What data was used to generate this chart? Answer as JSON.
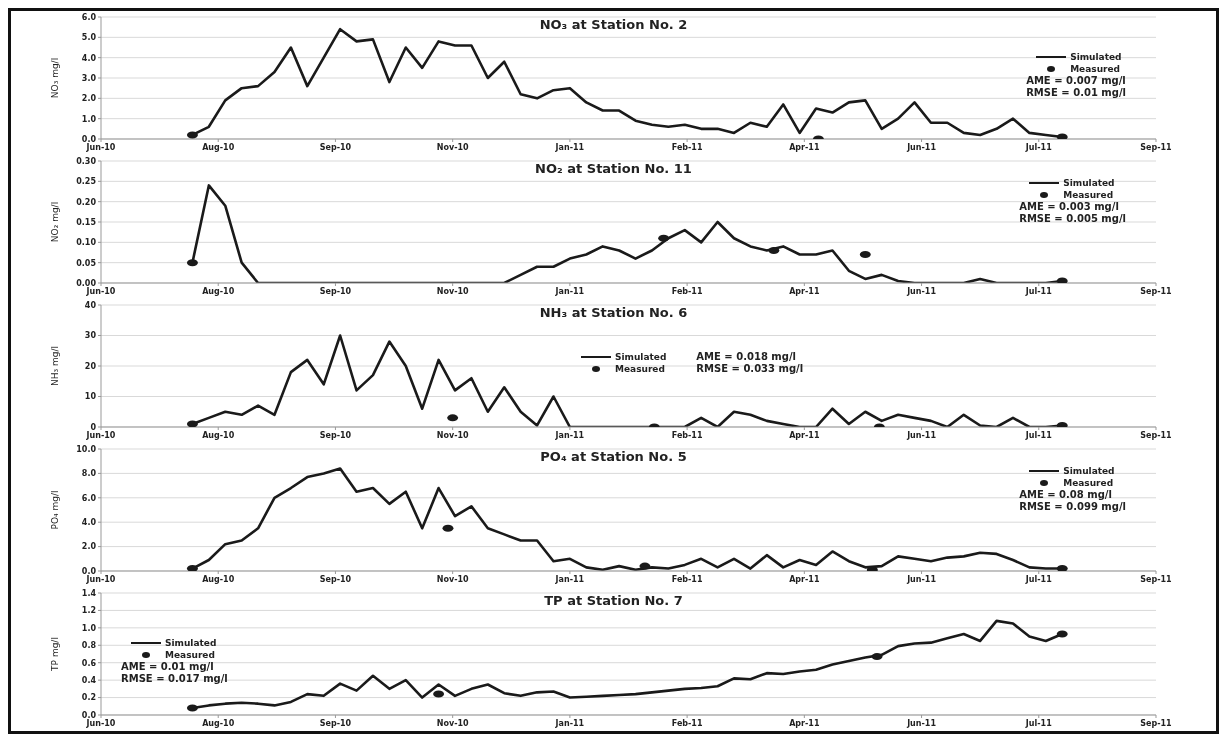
{
  "chart_data": [
    {
      "type": "line",
      "title": "NO₃ at Station No. 2",
      "ylabel": "NO₃ mg/l",
      "annotations": [
        "AME = 0.007 mg/l",
        "RMSE = 0.01 mg/l"
      ],
      "legend": "right",
      "grid": "y",
      "xlim": [
        "2010-06-20",
        "2011-09-13"
      ],
      "xticks": [
        {
          "value": "2010-06-20",
          "label": "Jun-10"
        },
        {
          "value": "2010-08-09",
          "label": "Aug-10"
        },
        {
          "value": "2010-09-28",
          "label": "Sep-10"
        },
        {
          "value": "2010-11-17",
          "label": "Nov-10"
        },
        {
          "value": "2011-01-06",
          "label": "Jan-11"
        },
        {
          "value": "2011-02-25",
          "label": "Feb-11"
        },
        {
          "value": "2011-04-16",
          "label": "Apr-11"
        },
        {
          "value": "2011-06-05",
          "label": "Jun-11"
        },
        {
          "value": "2011-07-25",
          "label": "Jul-11"
        },
        {
          "value": "2011-09-13",
          "label": "Sep-11"
        }
      ],
      "ylim": [
        0,
        6
      ],
      "yticks": [
        {
          "value": 0,
          "label": "0.0"
        },
        {
          "value": 1,
          "label": "1.0"
        },
        {
          "value": 2,
          "label": "2.0"
        },
        {
          "value": 3,
          "label": "3.0"
        },
        {
          "value": 4,
          "label": "4.0"
        },
        {
          "value": 5,
          "label": "5.0"
        },
        {
          "value": 6,
          "label": "6.0"
        }
      ],
      "x": [
        "2010-07-29",
        "2010-08-05",
        "2010-08-12",
        "2010-08-19",
        "2010-08-26",
        "2010-09-02",
        "2010-09-09",
        "2010-09-16",
        "2010-09-23",
        "2010-09-30",
        "2010-10-07",
        "2010-10-14",
        "2010-10-21",
        "2010-10-28",
        "2010-11-04",
        "2010-11-11",
        "2010-11-18",
        "2010-11-25",
        "2010-12-02",
        "2010-12-09",
        "2010-12-16",
        "2010-12-23",
        "2010-12-30",
        "2011-01-06",
        "2011-01-13",
        "2011-01-20",
        "2011-01-27",
        "2011-02-03",
        "2011-02-10",
        "2011-02-17",
        "2011-02-24",
        "2011-03-03",
        "2011-03-10",
        "2011-03-17",
        "2011-03-24",
        "2011-03-31",
        "2011-04-07",
        "2011-04-14",
        "2011-04-21",
        "2011-04-28",
        "2011-05-05",
        "2011-05-12",
        "2011-05-19",
        "2011-05-26",
        "2011-06-02",
        "2011-06-09",
        "2011-06-16",
        "2011-06-23",
        "2011-06-30",
        "2011-07-07",
        "2011-07-14",
        "2011-07-21",
        "2011-07-28",
        "2011-08-04"
      ],
      "series": [
        {
          "name": "Simulated",
          "type": "line",
          "color": "#1a1a1a",
          "marker": "none",
          "line_style": "solid",
          "values": [
            0.2,
            0.6,
            1.9,
            2.5,
            2.6,
            3.3,
            4.5,
            2.6,
            4.0,
            5.4,
            4.8,
            4.9,
            2.8,
            4.5,
            3.5,
            4.8,
            4.6,
            4.6,
            3.0,
            3.8,
            2.2,
            2.0,
            2.4,
            2.5,
            1.8,
            1.4,
            1.4,
            0.9,
            0.7,
            0.6,
            0.7,
            0.5,
            0.5,
            0.3,
            0.8,
            0.6,
            1.7,
            0.3,
            1.5,
            1.3,
            1.8,
            1.9,
            0.5,
            1.0,
            1.8,
            0.8,
            0.8,
            0.3,
            0.2,
            0.5,
            1.0,
            0.3,
            0.2,
            0.1
          ]
        },
        {
          "name": "Measured",
          "type": "scatter",
          "color": "#1a1a1a",
          "marker": "circle",
          "x": [
            "2010-07-29",
            "2011-04-22",
            "2011-08-04"
          ],
          "values": [
            0.2,
            0.0,
            0.1
          ]
        }
      ]
    },
    {
      "type": "line",
      "title": "NO₂ at Station No. 11",
      "ylabel": "NO₂ mg/l",
      "annotations": [
        "AME = 0.003 mg/l",
        "RMSE = 0.005 mg/l"
      ],
      "legend": "top right",
      "grid": "y",
      "xlim": [
        "2010-06-20",
        "2011-09-13"
      ],
      "xticks": [
        {
          "value": "2010-06-20",
          "label": "Jun-10"
        },
        {
          "value": "2010-08-09",
          "label": "Aug-10"
        },
        {
          "value": "2010-09-28",
          "label": "Sep-10"
        },
        {
          "value": "2010-11-17",
          "label": "Nov-10"
        },
        {
          "value": "2011-01-06",
          "label": "Jan-11"
        },
        {
          "value": "2011-02-25",
          "label": "Feb-11"
        },
        {
          "value": "2011-04-16",
          "label": "Apr-11"
        },
        {
          "value": "2011-06-05",
          "label": "Jun-11"
        },
        {
          "value": "2011-07-25",
          "label": "Jul-11"
        },
        {
          "value": "2011-09-13",
          "label": "Sep-11"
        }
      ],
      "ylim": [
        0,
        0.3
      ],
      "yticks": [
        {
          "value": 0,
          "label": "0.00"
        },
        {
          "value": 0.05,
          "label": "0.05"
        },
        {
          "value": 0.1,
          "label": "0.10"
        },
        {
          "value": 0.15,
          "label": "0.15"
        },
        {
          "value": 0.2,
          "label": "0.20"
        },
        {
          "value": 0.25,
          "label": "0.25"
        },
        {
          "value": 0.3,
          "label": "0.30"
        }
      ],
      "x": [
        "2010-07-29",
        "2010-08-05",
        "2010-08-12",
        "2010-08-19",
        "2010-08-26",
        "2010-09-02",
        "2010-09-09",
        "2010-09-16",
        "2010-09-23",
        "2010-09-30",
        "2010-10-07",
        "2010-10-14",
        "2010-10-21",
        "2010-10-28",
        "2010-11-04",
        "2010-11-11",
        "2010-11-18",
        "2010-11-25",
        "2010-12-02",
        "2010-12-09",
        "2010-12-16",
        "2010-12-23",
        "2010-12-30",
        "2011-01-06",
        "2011-01-13",
        "2011-01-20",
        "2011-01-27",
        "2011-02-03",
        "2011-02-10",
        "2011-02-17",
        "2011-02-24",
        "2011-03-03",
        "2011-03-10",
        "2011-03-17",
        "2011-03-24",
        "2011-03-31",
        "2011-04-07",
        "2011-04-14",
        "2011-04-21",
        "2011-04-28",
        "2011-05-05",
        "2011-05-12",
        "2011-05-19",
        "2011-05-26",
        "2011-06-02",
        "2011-06-09",
        "2011-06-16",
        "2011-06-23",
        "2011-06-30",
        "2011-07-07",
        "2011-07-14",
        "2011-07-21",
        "2011-07-28",
        "2011-08-04"
      ],
      "series": [
        {
          "name": "Simulated",
          "type": "line",
          "color": "#1a1a1a",
          "marker": "none",
          "line_style": "solid",
          "values": [
            0.05,
            0.24,
            0.19,
            0.05,
            0,
            0,
            0,
            0,
            0,
            0,
            0,
            0,
            0,
            0,
            0,
            0,
            0,
            0,
            0,
            0,
            0.02,
            0.04,
            0.04,
            0.06,
            0.07,
            0.09,
            0.08,
            0.06,
            0.08,
            0.11,
            0.13,
            0.1,
            0.15,
            0.11,
            0.09,
            0.08,
            0.09,
            0.07,
            0.07,
            0.08,
            0.03,
            0.01,
            0.02,
            0.005,
            0,
            0,
            0,
            0,
            0.01,
            0,
            0,
            0,
            0,
            0.005
          ]
        },
        {
          "name": "Measured",
          "type": "scatter",
          "color": "#1a1a1a",
          "marker": "circle",
          "x": [
            "2010-07-29",
            "2011-02-15",
            "2011-04-03",
            "2011-05-12",
            "2011-08-04"
          ],
          "values": [
            0.05,
            0.11,
            0.08,
            0.07,
            0.005
          ]
        }
      ]
    },
    {
      "type": "line",
      "title": "NH₃ at Station No. 6",
      "ylabel": "NH₃ mg/l",
      "annotations": [
        "AME = 0.018 mg/l",
        "RMSE = 0.033 mg/l"
      ],
      "legend": "center",
      "grid": "y",
      "xlim": [
        "2010-06-20",
        "2011-09-13"
      ],
      "xticks": [
        {
          "value": "2010-06-20",
          "label": "Jun-10"
        },
        {
          "value": "2010-08-09",
          "label": "Aug-10"
        },
        {
          "value": "2010-09-28",
          "label": "Sep-10"
        },
        {
          "value": "2010-11-17",
          "label": "Nov-10"
        },
        {
          "value": "2011-01-06",
          "label": "Jan-11"
        },
        {
          "value": "2011-02-25",
          "label": "Feb-11"
        },
        {
          "value": "2011-04-16",
          "label": "Apr-11"
        },
        {
          "value": "2011-06-05",
          "label": "Jun-11"
        },
        {
          "value": "2011-07-25",
          "label": "Jul-11"
        },
        {
          "value": "2011-09-13",
          "label": "Sep-11"
        }
      ],
      "ylim": [
        0,
        40
      ],
      "yticks": [
        0,
        10,
        20,
        30,
        40
      ],
      "x": [
        "2010-07-29",
        "2010-08-05",
        "2010-08-12",
        "2010-08-19",
        "2010-08-26",
        "2010-09-02",
        "2010-09-09",
        "2010-09-16",
        "2010-09-23",
        "2010-09-30",
        "2010-10-07",
        "2010-10-14",
        "2010-10-21",
        "2010-10-28",
        "2010-11-04",
        "2010-11-11",
        "2010-11-18",
        "2010-11-25",
        "2010-12-02",
        "2010-12-09",
        "2010-12-16",
        "2010-12-23",
        "2010-12-30",
        "2011-01-06",
        "2011-01-13",
        "2011-01-20",
        "2011-01-27",
        "2011-02-03",
        "2011-02-10",
        "2011-02-17",
        "2011-02-24",
        "2011-03-03",
        "2011-03-10",
        "2011-03-17",
        "2011-03-24",
        "2011-03-31",
        "2011-04-07",
        "2011-04-14",
        "2011-04-21",
        "2011-04-28",
        "2011-05-05",
        "2011-05-12",
        "2011-05-19",
        "2011-05-26",
        "2011-06-02",
        "2011-06-09",
        "2011-06-16",
        "2011-06-23",
        "2011-06-30",
        "2011-07-07",
        "2011-07-14",
        "2011-07-21",
        "2011-07-28",
        "2011-08-04"
      ],
      "series": [
        {
          "name": "Simulated",
          "type": "line",
          "color": "#1a1a1a",
          "marker": "none",
          "line_style": "solid",
          "values": [
            1,
            3,
            5,
            4,
            7,
            4,
            18,
            22,
            14,
            30,
            12,
            17,
            28,
            20,
            6,
            22,
            12,
            16,
            5,
            13,
            5,
            0.5,
            10,
            0,
            0,
            0,
            0,
            0,
            0,
            0,
            0,
            3,
            0,
            5,
            4,
            2,
            1,
            0,
            0,
            6,
            1,
            5,
            2,
            4,
            3,
            2,
            0,
            4,
            0.5,
            0,
            3,
            0,
            0,
            0.5
          ]
        },
        {
          "name": "Measured",
          "type": "scatter",
          "color": "#1a1a1a",
          "marker": "circle",
          "x": [
            "2010-07-29",
            "2010-11-17",
            "2011-02-11",
            "2011-05-18",
            "2011-08-04"
          ],
          "values": [
            1,
            3,
            0,
            0,
            0.5
          ]
        }
      ]
    },
    {
      "type": "line",
      "title": "PO₄ at Station No. 5",
      "ylabel": "PO₄ mg/l",
      "annotations": [
        "AME = 0.08 mg/l",
        "RMSE = 0.099 mg/l"
      ],
      "legend": "top right",
      "grid": "y",
      "xlim": [
        "2010-06-20",
        "2011-09-13"
      ],
      "xticks": [
        {
          "value": "2010-06-20",
          "label": "Jun-10"
        },
        {
          "value": "2010-08-09",
          "label": "Aug-10"
        },
        {
          "value": "2010-09-28",
          "label": "Sep-10"
        },
        {
          "value": "2010-11-17",
          "label": "Nov-10"
        },
        {
          "value": "2011-01-06",
          "label": "Jan-11"
        },
        {
          "value": "2011-02-25",
          "label": "Feb-11"
        },
        {
          "value": "2011-04-16",
          "label": "Apr-11"
        },
        {
          "value": "2011-06-05",
          "label": "Jun-11"
        },
        {
          "value": "2011-07-25",
          "label": "Jul-11"
        },
        {
          "value": "2011-09-13",
          "label": "Sep-11"
        }
      ],
      "ylim": [
        0,
        10
      ],
      "yticks": [
        {
          "value": 0,
          "label": "0.0"
        },
        {
          "value": 2,
          "label": "2.0"
        },
        {
          "value": 4,
          "label": "4.0"
        },
        {
          "value": 6,
          "label": "6.0"
        },
        {
          "value": 8,
          "label": "8.0"
        },
        {
          "value": 10,
          "label": "10.0"
        }
      ],
      "x": [
        "2010-07-29",
        "2010-08-05",
        "2010-08-12",
        "2010-08-19",
        "2010-08-26",
        "2010-09-02",
        "2010-09-09",
        "2010-09-16",
        "2010-09-23",
        "2010-09-30",
        "2010-10-07",
        "2010-10-14",
        "2010-10-21",
        "2010-10-28",
        "2010-11-04",
        "2010-11-11",
        "2010-11-18",
        "2010-11-25",
        "2010-12-02",
        "2010-12-09",
        "2010-12-16",
        "2010-12-23",
        "2010-12-30",
        "2011-01-06",
        "2011-01-13",
        "2011-01-20",
        "2011-01-27",
        "2011-02-03",
        "2011-02-10",
        "2011-02-17",
        "2011-02-24",
        "2011-03-03",
        "2011-03-10",
        "2011-03-17",
        "2011-03-24",
        "2011-03-31",
        "2011-04-07",
        "2011-04-14",
        "2011-04-21",
        "2011-04-28",
        "2011-05-05",
        "2011-05-12",
        "2011-05-19",
        "2011-05-26",
        "2011-06-02",
        "2011-06-09",
        "2011-06-16",
        "2011-06-23",
        "2011-06-30",
        "2011-07-07",
        "2011-07-14",
        "2011-07-21",
        "2011-07-28",
        "2011-08-04"
      ],
      "series": [
        {
          "name": "Simulated",
          "type": "line",
          "color": "#1a1a1a",
          "marker": "none",
          "line_style": "solid",
          "values": [
            0.2,
            0.9,
            2.2,
            2.5,
            3.5,
            6.0,
            6.8,
            7.7,
            8.0,
            8.4,
            6.5,
            6.8,
            5.5,
            6.5,
            3.5,
            6.8,
            4.5,
            5.3,
            3.5,
            3.0,
            2.5,
            2.5,
            0.8,
            1.0,
            0.3,
            0.1,
            0.4,
            0.1,
            0.3,
            0.2,
            0.5,
            1.0,
            0.3,
            1.0,
            0.2,
            1.3,
            0.3,
            0.9,
            0.5,
            1.6,
            0.8,
            0.3,
            0.4,
            1.2,
            1.0,
            0.8,
            1.1,
            1.2,
            1.5,
            1.4,
            0.9,
            0.3,
            0.2,
            0.2
          ]
        },
        {
          "name": "Measured",
          "type": "scatter",
          "color": "#1a1a1a",
          "marker": "circle",
          "x": [
            "2010-07-29",
            "2010-11-15",
            "2011-02-07",
            "2011-05-15",
            "2011-08-04"
          ],
          "values": [
            0.2,
            3.5,
            0.4,
            0.1,
            0.2
          ]
        }
      ]
    },
    {
      "type": "line",
      "title": "TP at Station No. 7",
      "ylabel": "TP mg/l",
      "annotations": [
        "AME = 0.01 mg/l",
        "RMSE = 0.017 mg/l"
      ],
      "legend": "top left",
      "grid": "y",
      "xlim": [
        "2010-06-20",
        "2011-09-13"
      ],
      "xticks": [
        {
          "value": "2010-06-20",
          "label": "Jun-10"
        },
        {
          "value": "2010-08-09",
          "label": "Aug-10"
        },
        {
          "value": "2010-09-28",
          "label": "Sep-10"
        },
        {
          "value": "2010-11-17",
          "label": "Nov-10"
        },
        {
          "value": "2011-01-06",
          "label": "Jan-11"
        },
        {
          "value": "2011-02-25",
          "label": "Feb-11"
        },
        {
          "value": "2011-04-16",
          "label": "Apr-11"
        },
        {
          "value": "2011-06-05",
          "label": "Jun-11"
        },
        {
          "value": "2011-07-25",
          "label": "Jul-11"
        },
        {
          "value": "2011-09-13",
          "label": "Sep-11"
        }
      ],
      "ylim": [
        0,
        1.4
      ],
      "yticks": [
        {
          "value": 0,
          "label": "0.0"
        },
        0.2,
        0.4,
        0.6,
        0.8,
        {
          "value": 1,
          "label": "1.0"
        },
        1.2,
        1.4
      ],
      "x": [
        "2010-07-29",
        "2010-08-05",
        "2010-08-12",
        "2010-08-19",
        "2010-08-26",
        "2010-09-02",
        "2010-09-09",
        "2010-09-16",
        "2010-09-23",
        "2010-09-30",
        "2010-10-07",
        "2010-10-14",
        "2010-10-21",
        "2010-10-28",
        "2010-11-04",
        "2010-11-11",
        "2010-11-18",
        "2010-11-25",
        "2010-12-02",
        "2010-12-09",
        "2010-12-16",
        "2010-12-23",
        "2010-12-30",
        "2011-01-06",
        "2011-01-13",
        "2011-01-20",
        "2011-01-27",
        "2011-02-03",
        "2011-02-10",
        "2011-02-17",
        "2011-02-24",
        "2011-03-03",
        "2011-03-10",
        "2011-03-17",
        "2011-03-24",
        "2011-03-31",
        "2011-04-07",
        "2011-04-14",
        "2011-04-21",
        "2011-04-28",
        "2011-05-05",
        "2011-05-12",
        "2011-05-19",
        "2011-05-26",
        "2011-06-02",
        "2011-06-09",
        "2011-06-16",
        "2011-06-23",
        "2011-06-30",
        "2011-07-07",
        "2011-07-14",
        "2011-07-21",
        "2011-07-28",
        "2011-08-04"
      ],
      "series": [
        {
          "name": "Simulated",
          "type": "line",
          "color": "#1a1a1a",
          "marker": "none",
          "line_style": "solid",
          "values": [
            0.08,
            0.11,
            0.13,
            0.14,
            0.13,
            0.11,
            0.15,
            0.24,
            0.22,
            0.36,
            0.28,
            0.45,
            0.3,
            0.4,
            0.2,
            0.35,
            0.22,
            0.3,
            0.35,
            0.25,
            0.22,
            0.26,
            0.27,
            0.2,
            0.21,
            0.22,
            0.23,
            0.24,
            0.26,
            0.28,
            0.3,
            0.31,
            0.33,
            0.42,
            0.41,
            0.48,
            0.47,
            0.5,
            0.52,
            0.58,
            0.62,
            0.66,
            0.69,
            0.79,
            0.82,
            0.83,
            0.88,
            0.93,
            0.85,
            1.08,
            1.05,
            0.9,
            0.85,
            0.93
          ]
        },
        {
          "name": "Measured",
          "type": "scatter",
          "color": "#1a1a1a",
          "marker": "circle",
          "x": [
            "2010-07-29",
            "2010-11-11",
            "2011-05-17",
            "2011-08-04"
          ],
          "values": [
            0.08,
            0.24,
            0.67,
            0.93
          ]
        }
      ]
    }
  ]
}
